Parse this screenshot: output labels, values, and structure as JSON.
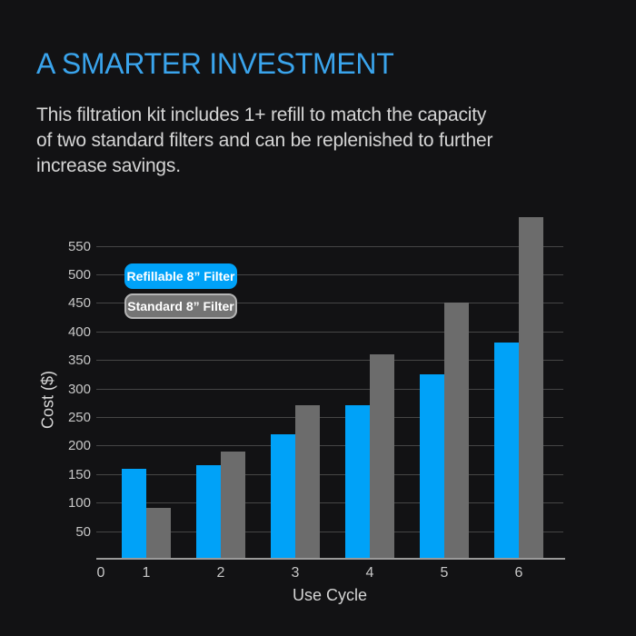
{
  "colors": {
    "background": "#121214",
    "title": "#3aa4ec",
    "body_text": "#d5d5d5",
    "refillable_blue": "#00a2f8",
    "standard_gray": "#6c6c6c",
    "legend_gray_border": "#b5b5b5",
    "gridline": "#464646",
    "axis_line": "#9a9a9a",
    "tick_label": "#c7c7c7"
  },
  "header": {
    "title": "A SMARTER INVESTMENT",
    "description_lines": [
      "This filtration kit includes 1+ refill to match the capacity",
      "of two standard filters and can be replenished to further",
      "increase savings."
    ]
  },
  "chart_data": {
    "type": "bar",
    "title": "",
    "xlabel": "Use Cycle",
    "ylabel": "Cost ($)",
    "categories": [
      1,
      2,
      3,
      4,
      5,
      6
    ],
    "x_ticks": [
      "0",
      "1",
      "2",
      "3",
      "4",
      "5",
      "6"
    ],
    "y_ticks": [
      50,
      100,
      150,
      200,
      250,
      300,
      350,
      400,
      450,
      500,
      550
    ],
    "ylim": [
      0,
      620
    ],
    "grid": true,
    "legend_position": "upper-left-inside",
    "series": [
      {
        "name": "Refillable 8” Filter",
        "color": "#00a2f8",
        "values": [
          160,
          165,
          220,
          270,
          325,
          380
        ]
      },
      {
        "name": "Standard 8” Filter",
        "color": "#6c6c6c",
        "values": [
          90,
          190,
          270,
          360,
          450,
          600
        ]
      }
    ]
  }
}
